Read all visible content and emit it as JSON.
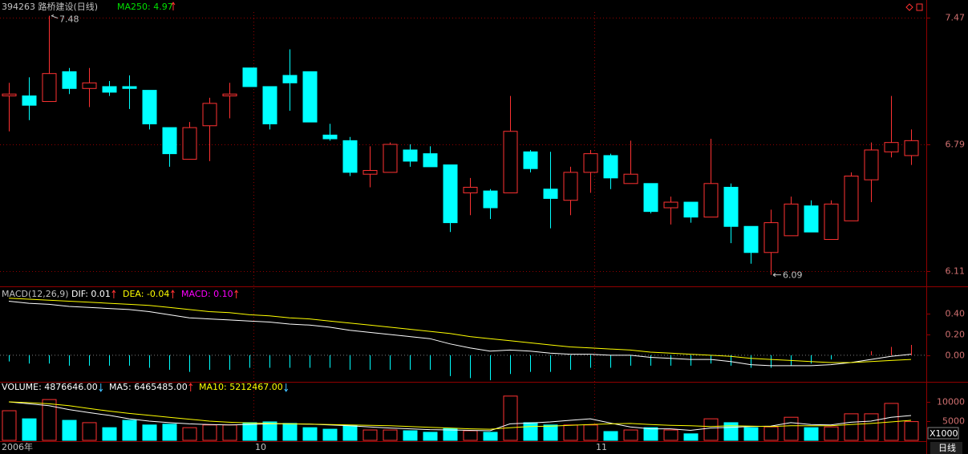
{
  "chart_data": [
    {
      "type": "candlestick",
      "title": "394263 路桥建设(日线)",
      "subtitle": "MA250: 4.97",
      "up_color": "#ff3232",
      "down_color": "#00ffff",
      "open": [
        7.05,
        7.05,
        7.02,
        7.18,
        7.09,
        7.1,
        7.1,
        7.08,
        6.88,
        6.71,
        6.89,
        7.05,
        7.2,
        7.1,
        7.16,
        7.18,
        6.84,
        6.81,
        6.63,
        6.64,
        6.76,
        6.74,
        6.68,
        6.53,
        6.54,
        6.53,
        6.75,
        6.55,
        6.49,
        6.64,
        6.73,
        6.58,
        6.58,
        6.45,
        6.48,
        6.4,
        6.56,
        6.35,
        6.21,
        6.3,
        6.46,
        6.28,
        6.38,
        6.6,
        6.75,
        6.73
      ],
      "high": [
        7.12,
        7.15,
        7.48,
        7.2,
        7.2,
        7.13,
        7.16,
        7.08,
        6.88,
        6.91,
        7.04,
        7.12,
        7.2,
        7.1,
        7.3,
        7.18,
        6.9,
        6.83,
        6.78,
        6.8,
        6.79,
        6.78,
        6.68,
        6.61,
        6.55,
        7.05,
        6.76,
        6.75,
        6.67,
        6.76,
        6.74,
        6.81,
        6.58,
        6.51,
        6.48,
        6.82,
        6.58,
        6.35,
        6.44,
        6.51,
        6.49,
        6.49,
        6.64,
        6.8,
        7.05,
        6.87
      ],
      "low": [
        6.86,
        6.92,
        7.02,
        7.06,
        6.99,
        7.05,
        6.98,
        6.87,
        6.67,
        6.71,
        6.7,
        6.93,
        7.1,
        6.87,
        6.97,
        6.91,
        6.81,
        6.62,
        6.56,
        6.64,
        6.67,
        6.67,
        6.32,
        6.41,
        6.39,
        6.53,
        6.64,
        6.34,
        6.41,
        6.53,
        6.55,
        6.58,
        6.42,
        6.36,
        6.37,
        6.4,
        6.26,
        6.15,
        6.09,
        6.3,
        6.32,
        6.28,
        6.38,
        6.48,
        6.72,
        6.68
      ],
      "close": [
        7.06,
        7.0,
        7.17,
        7.09,
        7.12,
        7.07,
        7.09,
        6.9,
        6.74,
        6.88,
        7.01,
        7.06,
        7.1,
        6.9,
        7.12,
        6.91,
        6.82,
        6.64,
        6.65,
        6.79,
        6.7,
        6.67,
        6.37,
        6.56,
        6.45,
        6.86,
        6.66,
        6.5,
        6.64,
        6.74,
        6.61,
        6.63,
        6.43,
        6.48,
        6.4,
        6.58,
        6.35,
        6.21,
        6.37,
        6.47,
        6.32,
        6.47,
        6.62,
        6.76,
        6.8,
        6.81
      ],
      "categories": [
        "2006年",
        null,
        null,
        null,
        null,
        null,
        null,
        null,
        null,
        null,
        null,
        null,
        "10",
        null,
        null,
        null,
        null,
        null,
        null,
        null,
        null,
        null,
        null,
        null,
        null,
        null,
        null,
        null,
        null,
        "11",
        null,
        null,
        null,
        null,
        null,
        null,
        null,
        null,
        null,
        null,
        null,
        null,
        null,
        null,
        null,
        null
      ],
      "annotations": {
        "max_high": 7.48,
        "min_low": 6.09
      },
      "ylim": [
        6.08,
        7.5
      ],
      "yticks": [
        6.11,
        6.79,
        7.47
      ],
      "grid": true,
      "period_label": "日线"
    },
    {
      "type": "macd",
      "title": "MACD(12,26,9)",
      "series": [
        {
          "name": "DIF: 0.01",
          "color": "#ffffff",
          "values": [
            0.52,
            0.5,
            0.49,
            0.47,
            0.46,
            0.45,
            0.44,
            0.42,
            0.39,
            0.36,
            0.35,
            0.34,
            0.33,
            0.32,
            0.3,
            0.29,
            0.27,
            0.24,
            0.22,
            0.2,
            0.18,
            0.16,
            0.11,
            0.07,
            0.04,
            0.05,
            0.04,
            0.02,
            0.01,
            0.01,
            0.0,
            0.0,
            -0.02,
            -0.03,
            -0.04,
            -0.04,
            -0.06,
            -0.09,
            -0.1,
            -0.1,
            -0.1,
            -0.09,
            -0.07,
            -0.04,
            -0.01,
            0.01
          ]
        },
        {
          "name": "DEA: -0.04",
          "color": "#ffff00",
          "values": [
            0.55,
            0.54,
            0.53,
            0.52,
            0.51,
            0.5,
            0.49,
            0.48,
            0.46,
            0.44,
            0.42,
            0.41,
            0.39,
            0.38,
            0.36,
            0.35,
            0.33,
            0.31,
            0.29,
            0.27,
            0.25,
            0.23,
            0.21,
            0.18,
            0.16,
            0.14,
            0.12,
            0.1,
            0.08,
            0.07,
            0.06,
            0.05,
            0.03,
            0.02,
            0.01,
            0.0,
            -0.01,
            -0.03,
            -0.04,
            -0.05,
            -0.06,
            -0.07,
            -0.07,
            -0.06,
            -0.05,
            -0.04
          ]
        },
        {
          "name": "MACD: 0.10",
          "color": "#ff00ff",
          "values": [
            -0.06,
            -0.08,
            -0.08,
            -0.1,
            -0.1,
            -0.1,
            -0.1,
            -0.12,
            -0.14,
            -0.16,
            -0.14,
            -0.14,
            -0.12,
            -0.12,
            -0.12,
            -0.12,
            -0.12,
            -0.14,
            -0.14,
            -0.14,
            -0.14,
            -0.14,
            -0.2,
            -0.22,
            -0.24,
            -0.18,
            -0.16,
            -0.16,
            -0.14,
            -0.12,
            -0.12,
            -0.1,
            -0.1,
            -0.1,
            -0.1,
            -0.08,
            -0.1,
            -0.12,
            -0.12,
            -0.1,
            -0.08,
            -0.04,
            0.0,
            0.04,
            0.08,
            0.1
          ]
        }
      ],
      "ylim": [
        -0.24,
        0.64
      ],
      "yticks": [
        {
          "value": 0,
          "label": "0.00"
        },
        {
          "value": 0.2,
          "label": "0.20"
        },
        {
          "value": 0.4,
          "label": "0.40"
        }
      ]
    },
    {
      "type": "volume",
      "unit_label": "X1000",
      "series": [
        {
          "name": "VOLUME: 4876646.00",
          "values": [
            7700,
            5600,
            10600,
            5200,
            4600,
            3300,
            5200,
            4000,
            4200,
            3300,
            4000,
            4000,
            4600,
            4800,
            4400,
            3300,
            2900,
            3800,
            2700,
            2700,
            2500,
            2100,
            3100,
            2500,
            2100,
            11500,
            4600,
            4000,
            4000,
            4000,
            2300,
            2700,
            3300,
            2700,
            1700,
            5600,
            4600,
            3300,
            3500,
            6000,
            3300,
            3500,
            6900,
            6900,
            9600,
            4876.646
          ]
        },
        {
          "name": "MA5: 6465485.00",
          "color": "#ffffff",
          "values": [
            10000,
            9500,
            9000,
            8000,
            7200,
            6500,
            5600,
            5000,
            4600,
            4300,
            4100,
            4000,
            4100,
            4300,
            4300,
            4200,
            4000,
            3800,
            3500,
            3200,
            3000,
            2800,
            2700,
            2600,
            2500,
            4300,
            4500,
            4800,
            5200,
            5600,
            4500,
            3500,
            3000,
            3000,
            2600,
            3200,
            3400,
            3600,
            3700,
            4600,
            4100,
            4000,
            4700,
            5000,
            6000,
            6465.485
          ]
        },
        {
          "name": "MA10: 5212467.00",
          "color": "#ffff00",
          "values": [
            10000,
            9800,
            9500,
            9000,
            8300,
            7600,
            7000,
            6500,
            6000,
            5500,
            5000,
            4700,
            4500,
            4400,
            4300,
            4200,
            4100,
            4000,
            3900,
            3800,
            3600,
            3400,
            3200,
            3000,
            2900,
            3300,
            3600,
            3700,
            3900,
            4100,
            4300,
            4400,
            4100,
            3900,
            3800,
            3600,
            3800,
            3700,
            3600,
            3800,
            3800,
            3800,
            4100,
            4400,
            4800,
            5212.467
          ]
        }
      ],
      "ylim": [
        0,
        15000
      ],
      "yticks": [
        5000,
        10000
      ]
    }
  ]
}
